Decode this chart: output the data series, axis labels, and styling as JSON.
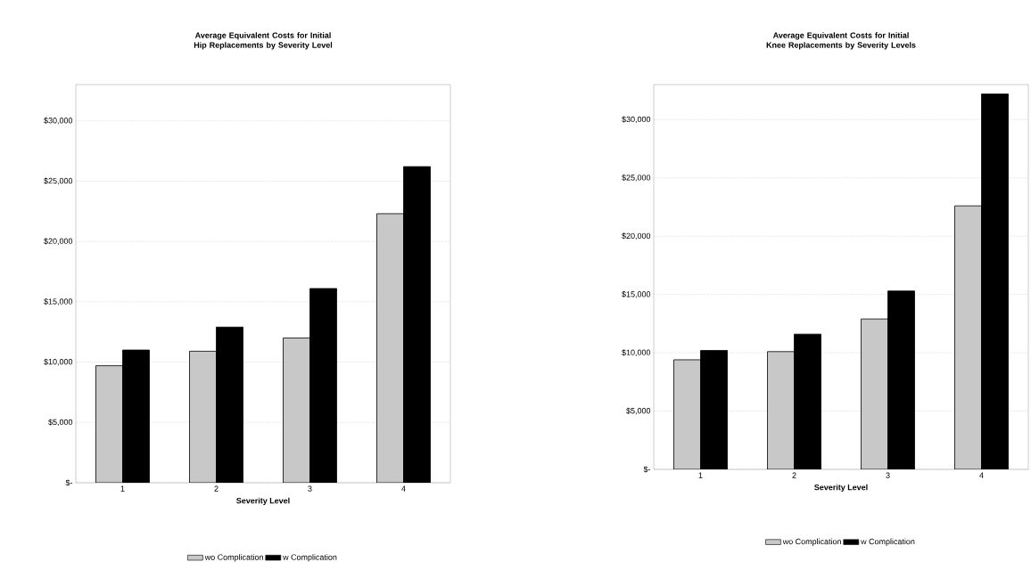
{
  "chart_data": [
    {
      "type": "bar",
      "title": "Average Equivalent Costs for Initial Hip Replacements by Severity Level",
      "xlabel": "Severity Level",
      "categories": [
        "1",
        "2",
        "3",
        "4"
      ],
      "series": [
        {
          "name": "wo Complication",
          "color": "#c8c8c8",
          "values": [
            9700,
            10900,
            12000,
            22300
          ]
        },
        {
          "name": "w Complication",
          "color": "#000000",
          "values": [
            11000,
            12900,
            16100,
            26200
          ]
        }
      ],
      "ylim": [
        0,
        33000
      ],
      "yticks": [
        {
          "value": 0,
          "label": "$-"
        },
        {
          "value": 5000,
          "label": "$5,000"
        },
        {
          "value": 10000,
          "label": "$10,000"
        },
        {
          "value": 15000,
          "label": "$15,000"
        },
        {
          "value": 20000,
          "label": "$20,000"
        },
        {
          "value": 25000,
          "label": "$25,000"
        },
        {
          "value": 30000,
          "label": "$30,000"
        }
      ],
      "grid": "y",
      "legend": "bottom"
    },
    {
      "type": "bar",
      "title": "Average Equivalent Costs for Initial Knee Replacements by Severity Levels",
      "xlabel": "Severity Level",
      "categories": [
        "1",
        "2",
        "3",
        "4"
      ],
      "series": [
        {
          "name": "wo Complication",
          "color": "#c8c8c8",
          "values": [
            9400,
            10100,
            12900,
            22600
          ]
        },
        {
          "name": "w Complication",
          "color": "#000000",
          "values": [
            10200,
            11600,
            15300,
            32200
          ]
        }
      ],
      "ylim": [
        0,
        33000
      ],
      "yticks": [
        {
          "value": 0,
          "label": "$-"
        },
        {
          "value": 5000,
          "label": "$5,000"
        },
        {
          "value": 10000,
          "label": "$10,000"
        },
        {
          "value": 15000,
          "label": "$15,000"
        },
        {
          "value": 20000,
          "label": "$20,000"
        },
        {
          "value": 25000,
          "label": "$25,000"
        },
        {
          "value": 30000,
          "label": "$30,000"
        }
      ],
      "grid": "y",
      "legend": "bottom"
    }
  ]
}
